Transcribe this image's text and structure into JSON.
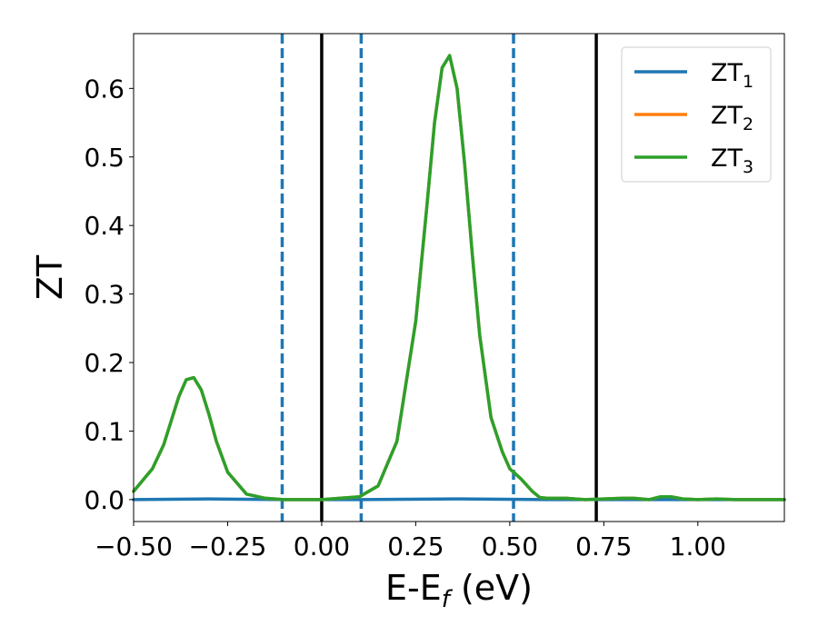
{
  "chart_data": {
    "type": "line",
    "xlabel": "E-E",
    "xlabel_sub": "f",
    "xlabel_unit": " (eV)",
    "ylabel": "ZT",
    "xlim": [
      -0.5,
      1.23
    ],
    "ylim": [
      -0.032,
      0.68
    ],
    "xticks": [
      -0.5,
      -0.25,
      0.0,
      0.25,
      0.5,
      0.75,
      1.0
    ],
    "xtick_labels": [
      "−0.50",
      "−0.25",
      "0.00",
      "0.25",
      "0.50",
      "0.75",
      "1.00"
    ],
    "yticks": [
      0.0,
      0.1,
      0.2,
      0.3,
      0.4,
      0.5,
      0.6
    ],
    "ytick_labels": [
      "0.0",
      "0.1",
      "0.2",
      "0.3",
      "0.4",
      "0.5",
      "0.6"
    ],
    "grid": false,
    "legend_position": "top-right",
    "vlines": [
      {
        "x": -0.105,
        "style": "dashed",
        "color": "#1f77b4"
      },
      {
        "x": 0.0,
        "style": "solid",
        "color": "#000000"
      },
      {
        "x": 0.105,
        "style": "dashed",
        "color": "#1f77b4"
      },
      {
        "x": 0.51,
        "style": "dashed",
        "color": "#1f77b4"
      },
      {
        "x": 0.73,
        "style": "solid",
        "color": "#000000"
      }
    ],
    "series": [
      {
        "name": "ZT",
        "sub": "1",
        "color": "#1f77b4",
        "x": [
          -0.5,
          -0.3,
          -0.1,
          0.1,
          0.35,
          0.6,
          0.9,
          1.23
        ],
        "y": [
          0.0,
          0.001,
          0.0,
          0.0,
          0.001,
          0.0,
          0.0,
          0.0
        ]
      },
      {
        "name": "ZT",
        "sub": "2",
        "color": "#ff7f0e",
        "x": [
          -0.5,
          -0.45,
          -0.42,
          -0.4,
          -0.38,
          -0.36,
          -0.34,
          -0.32,
          -0.3,
          -0.28,
          -0.25,
          -0.2,
          -0.15,
          -0.1,
          0.0,
          0.1,
          0.15,
          0.2,
          0.25,
          0.28,
          0.3,
          0.32,
          0.34,
          0.36,
          0.38,
          0.4,
          0.42,
          0.45,
          0.48,
          0.5,
          0.53,
          0.56,
          0.58,
          0.6,
          0.65,
          0.7,
          0.75,
          0.8,
          0.83,
          0.87,
          0.9,
          0.93,
          0.96,
          1.0,
          1.05,
          1.1,
          1.23
        ],
        "y": [
          0.012,
          0.045,
          0.08,
          0.115,
          0.15,
          0.175,
          0.178,
          0.16,
          0.125,
          0.085,
          0.04,
          0.008,
          0.002,
          0.0,
          0.0,
          0.004,
          0.02,
          0.085,
          0.26,
          0.43,
          0.55,
          0.63,
          0.648,
          0.6,
          0.49,
          0.36,
          0.24,
          0.12,
          0.07,
          0.045,
          0.03,
          0.012,
          0.003,
          0.002,
          0.002,
          0.0,
          0.001,
          0.002,
          0.002,
          0.0,
          0.004,
          0.004,
          0.001,
          0.0,
          0.001,
          0.0,
          0.0
        ]
      },
      {
        "name": "ZT",
        "sub": "3",
        "color": "#2ca02c",
        "x": [
          -0.5,
          -0.45,
          -0.42,
          -0.4,
          -0.38,
          -0.36,
          -0.34,
          -0.32,
          -0.3,
          -0.28,
          -0.25,
          -0.2,
          -0.15,
          -0.1,
          0.0,
          0.1,
          0.15,
          0.2,
          0.25,
          0.28,
          0.3,
          0.32,
          0.34,
          0.36,
          0.38,
          0.4,
          0.42,
          0.45,
          0.48,
          0.5,
          0.53,
          0.56,
          0.58,
          0.6,
          0.65,
          0.7,
          0.75,
          0.8,
          0.83,
          0.87,
          0.9,
          0.93,
          0.96,
          1.0,
          1.05,
          1.1,
          1.23
        ],
        "y": [
          0.012,
          0.045,
          0.08,
          0.115,
          0.15,
          0.175,
          0.178,
          0.16,
          0.125,
          0.085,
          0.04,
          0.008,
          0.002,
          0.0,
          0.0,
          0.004,
          0.02,
          0.085,
          0.26,
          0.43,
          0.55,
          0.63,
          0.648,
          0.6,
          0.49,
          0.36,
          0.24,
          0.12,
          0.07,
          0.045,
          0.03,
          0.012,
          0.003,
          0.002,
          0.002,
          0.0,
          0.001,
          0.002,
          0.002,
          0.0,
          0.004,
          0.004,
          0.001,
          0.0,
          0.001,
          0.0,
          0.0
        ]
      }
    ]
  }
}
